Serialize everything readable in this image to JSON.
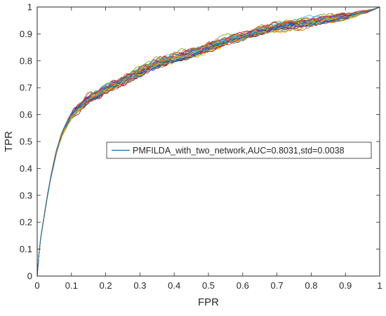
{
  "chart_data": {
    "type": "line",
    "title": "",
    "xlabel": "FPR",
    "ylabel": "TPR",
    "xlim": [
      0,
      1
    ],
    "ylim": [
      0,
      1
    ],
    "xticks": [
      "0",
      "0.1",
      "0.2",
      "0.3",
      "0.4",
      "0.5",
      "0.6",
      "0.7",
      "0.8",
      "0.9",
      "1"
    ],
    "yticks": [
      "0",
      "0.1",
      "0.2",
      "0.3",
      "0.4",
      "0.5",
      "0.6",
      "0.7",
      "0.8",
      "0.9",
      "1"
    ],
    "grid": false,
    "legend": {
      "position": "center-right",
      "entries": [
        "PMFILDA_with_two_network,AUC=0.8031,std=0.0038"
      ]
    },
    "curve_count_note": "many overlapping cross-validation ROC curves",
    "series": [
      {
        "name": "PMFILDA_with_two_network,AUC=0.8031,std=0.0038",
        "color": "#0072BD",
        "x": [
          0,
          0.005,
          0.01,
          0.02,
          0.03,
          0.04,
          0.05,
          0.06,
          0.07,
          0.08,
          0.09,
          0.1,
          0.12,
          0.15,
          0.18,
          0.2,
          0.25,
          0.3,
          0.35,
          0.4,
          0.45,
          0.5,
          0.55,
          0.6,
          0.65,
          0.7,
          0.75,
          0.8,
          0.85,
          0.9,
          0.95,
          0.98,
          1.0
        ],
        "y": [
          0,
          0.08,
          0.14,
          0.22,
          0.3,
          0.37,
          0.43,
          0.48,
          0.52,
          0.55,
          0.575,
          0.595,
          0.625,
          0.66,
          0.68,
          0.695,
          0.725,
          0.76,
          0.79,
          0.81,
          0.83,
          0.85,
          0.875,
          0.89,
          0.91,
          0.925,
          0.935,
          0.945,
          0.955,
          0.965,
          0.98,
          0.99,
          1.0
        ]
      }
    ],
    "extra_curve_colors": [
      "#D95319",
      "#EDB120",
      "#7E2F8E",
      "#77AC30",
      "#4DBEEE",
      "#A2142F",
      "#0072BD",
      "#D95319",
      "#EDB120",
      "#7E2F8E",
      "#77AC30",
      "#4DBEEE",
      "#A2142F"
    ]
  }
}
